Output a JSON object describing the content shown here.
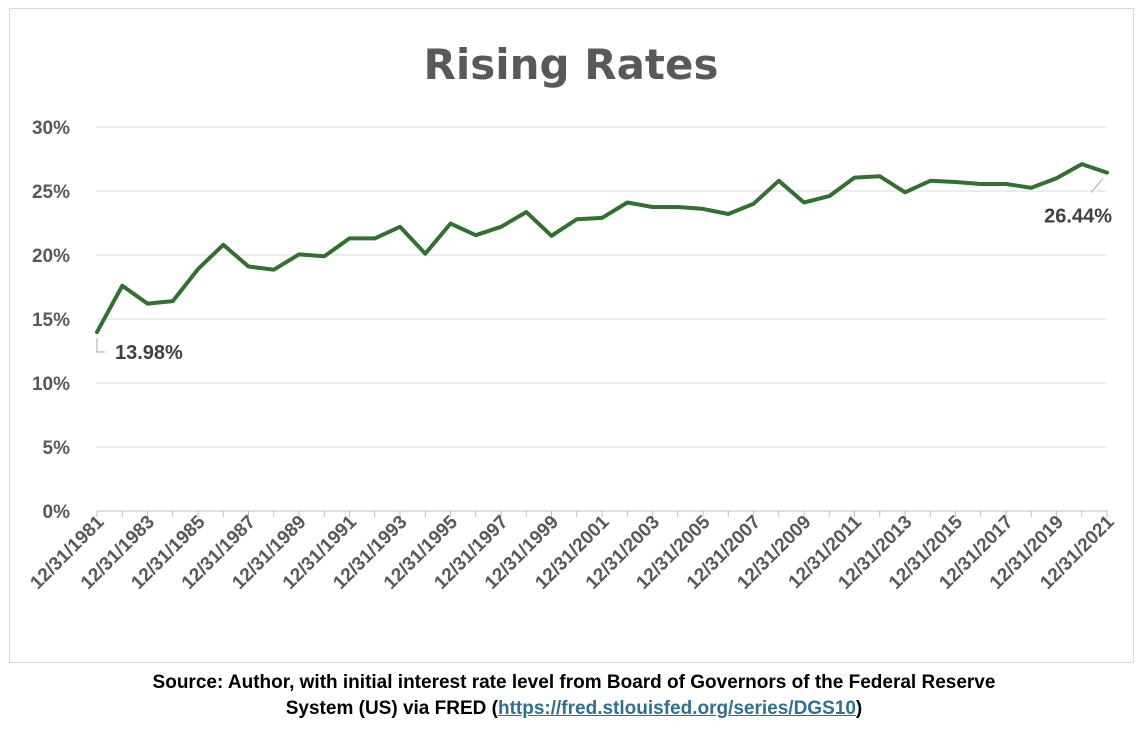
{
  "chart_data": {
    "type": "line",
    "title": "Rising Rates",
    "ylim": [
      0,
      30
    ],
    "yticks": [
      0,
      5,
      10,
      15,
      20,
      25,
      30
    ],
    "ytick_labels": [
      "0%",
      "5%",
      "10%",
      "15%",
      "20%",
      "25%",
      "30%"
    ],
    "grid": true,
    "legend": "none",
    "x": [
      "12/31/1981",
      "12/31/1982",
      "12/31/1983",
      "12/31/1984",
      "12/31/1985",
      "12/31/1986",
      "12/31/1987",
      "12/31/1988",
      "12/31/1989",
      "12/31/1990",
      "12/31/1991",
      "12/31/1992",
      "12/31/1993",
      "12/31/1994",
      "12/31/1995",
      "12/31/1996",
      "12/31/1997",
      "12/31/1998",
      "12/31/1999",
      "12/31/2000",
      "12/31/2001",
      "12/31/2002",
      "12/31/2003",
      "12/31/2004",
      "12/31/2005",
      "12/31/2006",
      "12/31/2007",
      "12/31/2008",
      "12/31/2009",
      "12/31/2010",
      "12/31/2011",
      "12/31/2012",
      "12/31/2013",
      "12/31/2014",
      "12/31/2015",
      "12/31/2016",
      "12/31/2017",
      "12/31/2018",
      "12/31/2019",
      "12/31/2020",
      "12/31/2021"
    ],
    "xtick_labels": [
      "12/31/1981",
      "12/31/1983",
      "12/31/1985",
      "12/31/1987",
      "12/31/1989",
      "12/31/1991",
      "12/31/1993",
      "12/31/1995",
      "12/31/1997",
      "12/31/1999",
      "12/31/2001",
      "12/31/2003",
      "12/31/2005",
      "12/31/2007",
      "12/31/2009",
      "12/31/2011",
      "12/31/2013",
      "12/31/2015",
      "12/31/2017",
      "12/31/2019",
      "12/31/2021"
    ],
    "series": [
      {
        "color": "#31702f",
        "values": [
          13.98,
          17.6,
          16.2,
          16.4,
          18.9,
          20.8,
          19.1,
          18.85,
          20.05,
          19.9,
          21.3,
          21.3,
          22.2,
          20.1,
          22.45,
          21.55,
          22.2,
          23.35,
          21.5,
          22.8,
          22.9,
          24.1,
          23.75,
          23.75,
          23.6,
          23.2,
          24.0,
          25.8,
          24.1,
          24.6,
          26.05,
          26.15,
          24.9,
          25.8,
          25.7,
          25.55,
          25.55,
          25.25,
          26.0,
          27.1,
          26.44
        ]
      }
    ],
    "annotations": [
      {
        "text": "13.98%",
        "index": 0
      },
      {
        "text": "26.44%",
        "index": 40
      }
    ]
  },
  "caption": {
    "line1": "Source: Author, with initial interest rate level from Board of Governors of the Federal Reserve",
    "line2_prefix": "System (US) via FRED (",
    "link_text": "https://fred.stlouisfed.org/series/DGS10",
    "line2_suffix": ")"
  }
}
